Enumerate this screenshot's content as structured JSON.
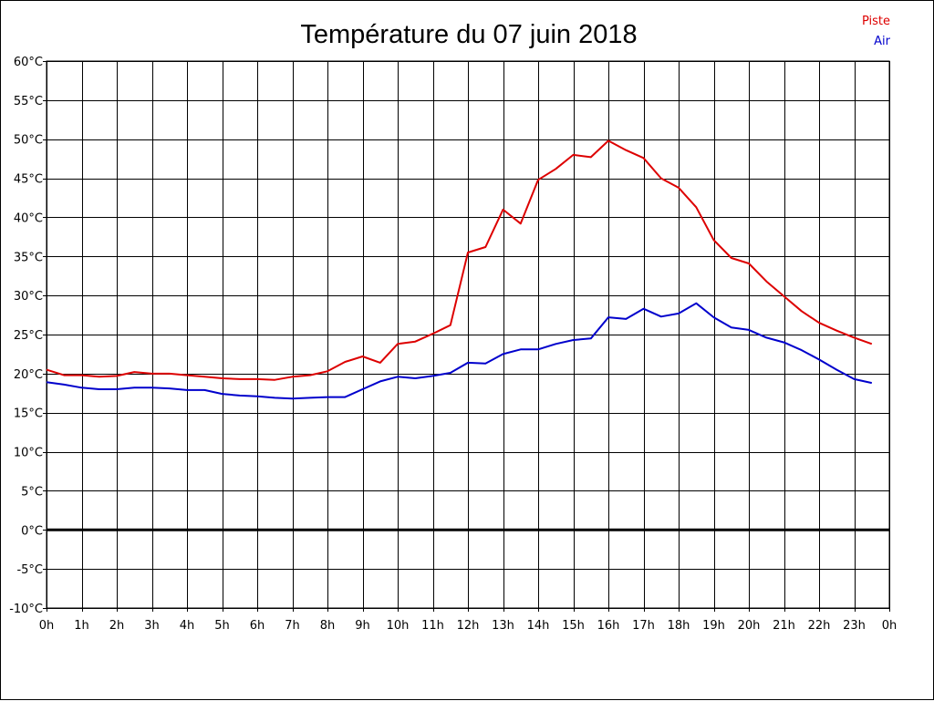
{
  "chart_data": {
    "type": "line",
    "title": "Température du 07 juin 2018",
    "x_tick_labels": [
      "0h",
      "1h",
      "2h",
      "3h",
      "4h",
      "5h",
      "6h",
      "7h",
      "8h",
      "9h",
      "10h",
      "11h",
      "12h",
      "13h",
      "14h",
      "15h",
      "16h",
      "17h",
      "18h",
      "19h",
      "20h",
      "21h",
      "22h",
      "23h",
      "0h"
    ],
    "y_tick_labels": [
      "60°C",
      "55°C",
      "50°C",
      "45°C",
      "40°C",
      "35°C",
      "30°C",
      "25°C",
      "20°C",
      "15°C",
      "10°C",
      "5°C",
      "0°C",
      "-5°C",
      "-10°C"
    ],
    "xlim": [
      0,
      24
    ],
    "ylim": [
      -10,
      60
    ],
    "grid": true,
    "legend_position": "top-right",
    "x": [
      0,
      0.5,
      1,
      1.5,
      2,
      2.5,
      3,
      3.5,
      4,
      4.5,
      5,
      5.5,
      6,
      6.5,
      7,
      7.5,
      8,
      8.5,
      9,
      9.5,
      10,
      10.5,
      11,
      11.5,
      12,
      12.5,
      13,
      13.5,
      14,
      14.5,
      15,
      15.5,
      16,
      16.5,
      17,
      17.5,
      18,
      18.5,
      19,
      19.5,
      20,
      20.5,
      21,
      21.5,
      22,
      22.5,
      23,
      23.5
    ],
    "series": [
      {
        "name": "Piste",
        "color": "#dd0000",
        "values": [
          20.5,
          19.8,
          19.8,
          19.6,
          19.7,
          20.2,
          20.0,
          20.0,
          19.8,
          19.6,
          19.4,
          19.3,
          19.3,
          19.2,
          19.6,
          19.8,
          20.3,
          21.5,
          22.2,
          21.4,
          23.8,
          24.1,
          25.1,
          26.2,
          35.5,
          36.2,
          41.0,
          39.2,
          44.8,
          46.2,
          48.0,
          47.7,
          49.8,
          48.6,
          47.6,
          45.0,
          43.8,
          41.3,
          37.1,
          34.8,
          34.1,
          31.8,
          29.9,
          28.0,
          26.5,
          25.5,
          24.6,
          23.8
        ]
      },
      {
        "name": "Air",
        "color": "#0000cc",
        "values": [
          18.9,
          18.6,
          18.2,
          18.0,
          18.0,
          18.2,
          18.2,
          18.1,
          17.9,
          17.9,
          17.4,
          17.2,
          17.1,
          16.9,
          16.8,
          16.9,
          17.0,
          17.0,
          18.0,
          19.0,
          19.6,
          19.4,
          19.7,
          20.1,
          21.4,
          21.3,
          22.5,
          23.1,
          23.1,
          23.8,
          24.3,
          24.5,
          27.2,
          27.0,
          28.3,
          27.3,
          27.7,
          29.0,
          27.2,
          25.9,
          25.6,
          24.6,
          24.0,
          23.0,
          21.8,
          20.5,
          19.3,
          18.8
        ]
      }
    ],
    "zero_line": 0
  }
}
